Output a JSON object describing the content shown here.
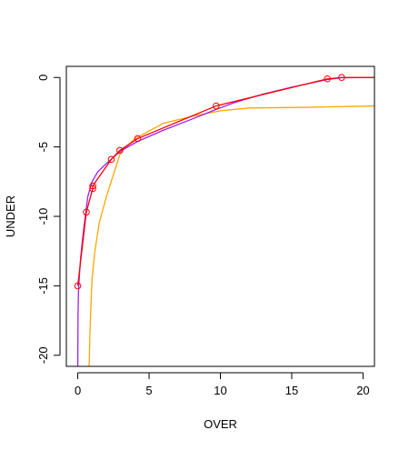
{
  "chart_data": {
    "type": "line",
    "title": "",
    "xlabel": "OVER",
    "ylabel": "UNDER",
    "xlim": [
      -0.8,
      20.8
    ],
    "ylim": [
      -20.8,
      0.8
    ],
    "x_ticks": [
      0,
      5,
      10,
      15,
      20
    ],
    "y_ticks": [
      0,
      -5,
      -10,
      -15,
      -20
    ],
    "x_tick_labels": [
      "0",
      "5",
      "10",
      "15",
      "20"
    ],
    "y_tick_labels": [
      "0",
      "-5",
      "-10",
      "-15",
      "-20"
    ],
    "grid": false,
    "legend": "none",
    "series": [
      {
        "kind": "line",
        "color": "#FFA500",
        "x": [
          0.8,
          0.85,
          0.9,
          1.0,
          1.2,
          1.5,
          2.0,
          3.0,
          4.0,
          6.0,
          8.0,
          10.0,
          12.0,
          16.0,
          20.8
        ],
        "y": [
          -20.8,
          -18.5,
          -17.0,
          -14.5,
          -12.5,
          -10.5,
          -8.6,
          -5.4,
          -4.4,
          -3.3,
          -2.8,
          -2.4,
          -2.2,
          -2.15,
          -2.05
        ]
      },
      {
        "kind": "line",
        "color": "#A020F0",
        "x": [
          0.0,
          0.02,
          0.05,
          0.1,
          0.2,
          0.35,
          0.5,
          0.7,
          1.0,
          1.4,
          2.0,
          3.0,
          4.2,
          6.0,
          8.0,
          9.7,
          11.0,
          13.0,
          15.0,
          17.5,
          18.5,
          20.8
        ],
        "y": [
          -20.8,
          -17.0,
          -15.5,
          -14.5,
          -13.0,
          -11.5,
          -10.2,
          -8.6,
          -7.5,
          -6.8,
          -6.2,
          -5.3,
          -4.6,
          -3.8,
          -3.0,
          -2.3,
          -1.8,
          -1.2,
          -0.7,
          -0.15,
          -0.02,
          0.0
        ]
      },
      {
        "kind": "line",
        "color": "#FF0000",
        "x": [
          0.0,
          0.6,
          1.05,
          1.05,
          2.35,
          2.95,
          4.2,
          9.7,
          17.5,
          18.5,
          20.8
        ],
        "y": [
          -15.0,
          -9.7,
          -8.0,
          -7.8,
          -5.9,
          -5.25,
          -4.4,
          -2.05,
          -0.1,
          0.0,
          0.0
        ]
      },
      {
        "kind": "points",
        "color": "#FF0000",
        "x": [
          0.0,
          0.6,
          1.05,
          1.05,
          2.35,
          2.95,
          4.2,
          9.7,
          17.5,
          18.5
        ],
        "y": [
          -15.0,
          -9.7,
          -8.0,
          -7.8,
          -5.9,
          -5.25,
          -4.4,
          -2.05,
          -0.1,
          0.0
        ]
      }
    ]
  }
}
